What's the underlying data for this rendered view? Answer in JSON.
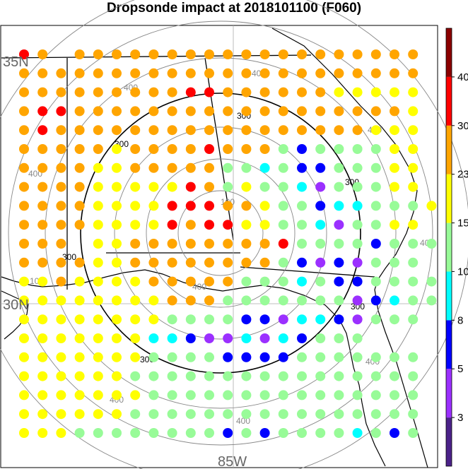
{
  "title": "Dropsonde impact at 2018101100 (F060)",
  "map": {
    "lat_labels": [
      "35N",
      "30N"
    ],
    "lon_label": "85W",
    "ring_labels_black": [
      "300",
      "300",
      "300",
      "300",
      "300",
      "300"
    ],
    "ring_labels_gray": [
      "400",
      "400",
      "400",
      "400",
      "400",
      "400",
      "400",
      "400",
      "100",
      "100",
      "400"
    ]
  },
  "colorbar": {
    "labels": [
      "3",
      "5",
      "8",
      "10",
      "15",
      "23",
      "30",
      "40"
    ],
    "colors": [
      "#4b2289",
      "#9b30ff",
      "#0000ff",
      "#00ffff",
      "#98fb98",
      "#ffff00",
      "#ffa500",
      "#ff0000",
      "#8b0000"
    ]
  },
  "chart_data": {
    "type": "scatter",
    "title": "Dropsonde impact at 2018101100 (F060)",
    "color_scale_bounds": [
      3,
      5,
      8,
      10,
      15,
      23,
      30,
      40
    ],
    "grid_rows": [
      "RO.OOOOOOOOOOOOOOOOOOO",
      "OOOOOOOOOOOOOOOOOOOOOO",
      "OOOOOOOOORROOOOOOYYYYY",
      "ORROOOOOOOOOOOOOOOOOOY",
      "OROOOOOOOOOOOOOOOOOYYY",
      "OOOOOYOOOOROOOGBGGGGYY",
      "OOOOYYOOOOOGGCGBBGGGYY",
      "OOOOYYYYYROGYGGCPGGGYY",
      "OOOOYYYYRRROOYGGBCCGGGY",
      "OOOOYYYYRORRYYGGCPGGYY",
      "OOO.YYOOOOOOOORGGGGBGGGY",
      "OOOOYYOOOOOOOOGBPBPGGG",
      "YYOYYYYOOOOOGGGCGBBGGGG",
      "YYYYYYYYOOOGGGGGGGPBCGG",
      "YYYYYYYYGGGGBBPCCBPGGG",
      "YYYYYYYCCBPPCPCBGGG",
      "YYYYYYYGGGGBBBBGGGGGGG",
      "YYYYYYGGGGGGGGGGGGGGGG",
      "YYYYYYYGGGGGGGGGGGGGGG",
      "YYYYYYGGGGGGGGGGGGGGGG",
      "YYYGGGGGGGGBGBGGGGCGBG"
    ]
  }
}
